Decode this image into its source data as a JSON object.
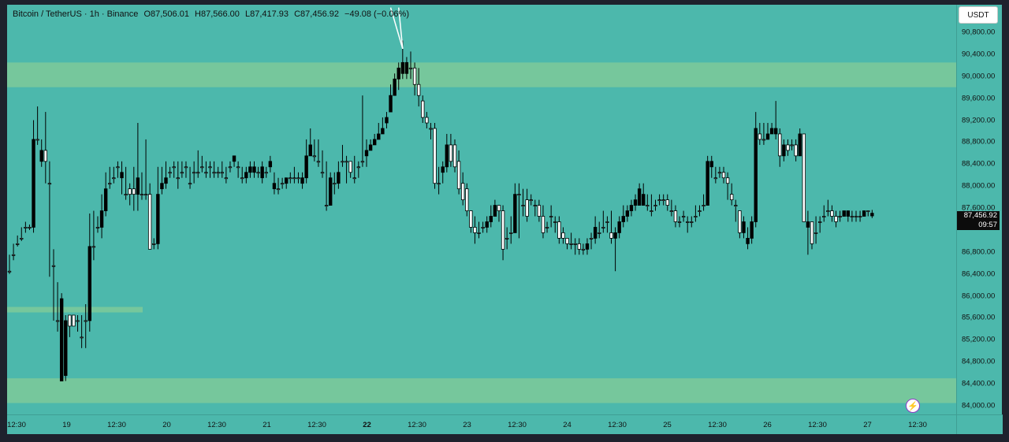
{
  "legend": {
    "symbol": "Bitcoin / TetherUS · 1h · Binance",
    "open": "O87,506.01",
    "high": "H87,566.00",
    "low": "L87,417.93",
    "close": "C87,456.92",
    "change": "−49.08 (−0.06%)"
  },
  "currency_button": "USDT",
  "last_price": {
    "price": "87,456.92",
    "countdown": "09:57"
  },
  "price_axis": [
    "90,800.00",
    "90,400.00",
    "90,000.00",
    "89,600.00",
    "89,200.00",
    "88,800.00",
    "88,400.00",
    "88,000.00",
    "87,600.00",
    "86,800.00",
    "86,400.00",
    "86,000.00",
    "85,600.00",
    "85,200.00",
    "84,800.00",
    "84,400.00",
    "84,000.00"
  ],
  "time_axis": [
    {
      "label": "12:30",
      "bold": false
    },
    {
      "label": "19",
      "bold": false
    },
    {
      "label": "12:30",
      "bold": false
    },
    {
      "label": "20",
      "bold": false
    },
    {
      "label": "12:30",
      "bold": false
    },
    {
      "label": "21",
      "bold": false
    },
    {
      "label": "12:30",
      "bold": false
    },
    {
      "label": "22",
      "bold": true
    },
    {
      "label": "12:30",
      "bold": false
    },
    {
      "label": "23",
      "bold": false
    },
    {
      "label": "12:30",
      "bold": false
    },
    {
      "label": "24",
      "bold": false
    },
    {
      "label": "12:30",
      "bold": false
    },
    {
      "label": "25",
      "bold": false
    },
    {
      "label": "12:30",
      "bold": false
    },
    {
      "label": "26",
      "bold": false
    },
    {
      "label": "12:30",
      "bold": false
    },
    {
      "label": "27",
      "bold": false
    },
    {
      "label": "12:30",
      "bold": false
    }
  ],
  "colors": {
    "background": "#4cb8ac",
    "zone": "#76c79c",
    "up": "#ffffff",
    "down": "#000000"
  },
  "chart_data": {
    "type": "candlestick",
    "price_range": [
      84000,
      90800
    ],
    "zones": [
      {
        "from": 89800,
        "to": 90250
      },
      {
        "from": 84050,
        "to": 84500
      },
      {
        "from": 85700,
        "to": 85800
      }
    ],
    "candles": [
      [
        86450,
        86750,
        86400,
        86450
      ],
      [
        86750,
        86950,
        86650,
        86750
      ],
      [
        86950,
        87100,
        86900,
        86950
      ],
      [
        87050,
        87250,
        87000,
        87050
      ],
      [
        87250,
        87350,
        87150,
        87250
      ],
      [
        87250,
        87300,
        87200,
        87250
      ],
      [
        88850,
        89200,
        87150,
        87250
      ],
      [
        88850,
        89450,
        88750,
        88850
      ],
      [
        88650,
        88850,
        88350,
        88450
      ],
      [
        88450,
        89350,
        88050,
        88650
      ],
      [
        88050,
        88450,
        86350,
        88050
      ],
      [
        86550,
        86850,
        85550,
        86550
      ],
      [
        85550,
        86250,
        85350,
        85550
      ],
      [
        85950,
        86050,
        84450,
        84450
      ],
      [
        85550,
        85650,
        84450,
        84550
      ],
      [
        85450,
        85650,
        85250,
        85650
      ],
      [
        85450,
        85650,
        85450,
        85650
      ],
      [
        85550,
        85650,
        85350,
        85550
      ],
      [
        85250,
        85650,
        85050,
        85250
      ],
      [
        85550,
        85850,
        85050,
        85550
      ],
      [
        86900,
        87500,
        85350,
        85550
      ],
      [
        86900,
        87550,
        86650,
        86900
      ],
      [
        87250,
        87450,
        87150,
        87250
      ],
      [
        87550,
        87850,
        87050,
        87250
      ],
      [
        87950,
        88250,
        87450,
        87550
      ],
      [
        88050,
        88350,
        87950,
        88050
      ],
      [
        88150,
        88350,
        88050,
        88150
      ],
      [
        88350,
        88450,
        88150,
        88350
      ],
      [
        88250,
        88450,
        87850,
        88150
      ],
      [
        87850,
        88350,
        87750,
        87850
      ],
      [
        87850,
        88050,
        87650,
        87950
      ],
      [
        87850,
        88350,
        87550,
        87950
      ],
      [
        88150,
        89150,
        87550,
        87850
      ],
      [
        87850,
        88250,
        87750,
        87850
      ],
      [
        87850,
        88850,
        87750,
        87850
      ],
      [
        86850,
        88050,
        86850,
        87850
      ],
      [
        86950,
        87050,
        86850,
        86950
      ],
      [
        87850,
        88350,
        86850,
        86950
      ],
      [
        88050,
        88350,
        87850,
        87950
      ],
      [
        88150,
        88450,
        87950,
        88050
      ],
      [
        88250,
        88350,
        88150,
        88250
      ],
      [
        88350,
        88450,
        88150,
        88350
      ],
      [
        88150,
        88450,
        87950,
        88150
      ],
      [
        88250,
        88450,
        88150,
        88250
      ],
      [
        88350,
        88450,
        88150,
        88350
      ],
      [
        88050,
        88350,
        87950,
        88050
      ],
      [
        88250,
        88450,
        88050,
        88250
      ],
      [
        88250,
        88650,
        88150,
        88250
      ],
      [
        88350,
        88550,
        88250,
        88350
      ],
      [
        88250,
        88450,
        88150,
        88250
      ],
      [
        88350,
        88450,
        88150,
        88350
      ],
      [
        88250,
        88450,
        88150,
        88250
      ],
      [
        88250,
        88350,
        88150,
        88250
      ],
      [
        88250,
        88450,
        88150,
        88250
      ],
      [
        88150,
        88350,
        88050,
        88150
      ],
      [
        88350,
        88450,
        88250,
        88350
      ],
      [
        88550,
        88550,
        88350,
        88450
      ],
      [
        88350,
        88450,
        88150,
        88350
      ],
      [
        88150,
        88350,
        88050,
        88150
      ],
      [
        88250,
        88350,
        88050,
        88150
      ],
      [
        88350,
        88450,
        88150,
        88250
      ],
      [
        88350,
        88450,
        88150,
        88250
      ],
      [
        88250,
        88350,
        88150,
        88250
      ],
      [
        88350,
        88450,
        88050,
        88150
      ],
      [
        88250,
        88350,
        88150,
        88250
      ],
      [
        88450,
        88550,
        88250,
        88350
      ],
      [
        88050,
        88250,
        87850,
        87950
      ],
      [
        87950,
        88150,
        87850,
        87950
      ],
      [
        88050,
        88150,
        87950,
        88050
      ],
      [
        88150,
        88150,
        87950,
        88050
      ],
      [
        88150,
        88250,
        88050,
        88150
      ],
      [
        88150,
        88350,
        88050,
        88150
      ],
      [
        88150,
        88250,
        88050,
        88150
      ],
      [
        88150,
        88250,
        87950,
        88050
      ],
      [
        88550,
        88850,
        88050,
        88150
      ],
      [
        88750,
        89050,
        88550,
        88550
      ],
      [
        88550,
        88850,
        88450,
        88550
      ],
      [
        88450,
        88850,
        88350,
        88450
      ],
      [
        88250,
        88650,
        88150,
        88250
      ],
      [
        87650,
        88450,
        87550,
        87650
      ],
      [
        88150,
        88250,
        87650,
        87650
      ],
      [
        88050,
        88250,
        87850,
        88050
      ],
      [
        88250,
        88450,
        87950,
        88050
      ],
      [
        88450,
        88750,
        88350,
        88450
      ],
      [
        88450,
        88550,
        88050,
        88450
      ],
      [
        88250,
        88450,
        88150,
        88450
      ],
      [
        88150,
        88550,
        88050,
        88150
      ],
      [
        88350,
        88450,
        88150,
        88350
      ],
      [
        88450,
        89650,
        88350,
        88450
      ],
      [
        88650,
        88850,
        88350,
        88550
      ],
      [
        88750,
        88850,
        88650,
        88650
      ],
      [
        88850,
        88950,
        88750,
        88750
      ],
      [
        88950,
        89150,
        88850,
        88850
      ],
      [
        89050,
        89250,
        88950,
        88950
      ],
      [
        89250,
        89350,
        89050,
        89150
      ],
      [
        89650,
        89850,
        89350,
        89350
      ],
      [
        89950,
        90050,
        89650,
        89650
      ],
      [
        90150,
        90250,
        89750,
        89950
      ],
      [
        90250,
        90650,
        89950,
        90050
      ],
      [
        90250,
        90350,
        89950,
        90050
      ],
      [
        90150,
        90450,
        89950,
        90150
      ],
      [
        89850,
        90250,
        89650,
        90150
      ],
      [
        89650,
        90150,
        89450,
        89850
      ],
      [
        89250,
        89650,
        89150,
        89550
      ],
      [
        89150,
        89350,
        89050,
        89250
      ],
      [
        89050,
        89150,
        88850,
        89050
      ],
      [
        88050,
        89150,
        87950,
        89050
      ],
      [
        88050,
        88350,
        87850,
        88050
      ],
      [
        88350,
        88450,
        88050,
        88250
      ],
      [
        88750,
        88950,
        88250,
        88350
      ],
      [
        88450,
        88950,
        88350,
        88750
      ],
      [
        88350,
        88850,
        88250,
        88750
      ],
      [
        87950,
        88650,
        87850,
        88450
      ],
      [
        87750,
        88250,
        87650,
        88050
      ],
      [
        87550,
        88050,
        87450,
        87950
      ],
      [
        87250,
        87550,
        87150,
        87550
      ],
      [
        87150,
        87450,
        86950,
        87250
      ],
      [
        87150,
        87350,
        87050,
        87150
      ],
      [
        87250,
        87350,
        87150,
        87250
      ],
      [
        87350,
        87450,
        87150,
        87250
      ],
      [
        87450,
        87650,
        87250,
        87350
      ],
      [
        87650,
        87750,
        87450,
        87450
      ],
      [
        87550,
        87650,
        87350,
        87650
      ],
      [
        86850,
        87650,
        86650,
        87550
      ],
      [
        87050,
        87250,
        86850,
        87050
      ],
      [
        87150,
        87450,
        86950,
        87150
      ],
      [
        87850,
        88050,
        87150,
        87150
      ],
      [
        87850,
        88050,
        87050,
        87850
      ],
      [
        87650,
        87950,
        87450,
        87650
      ],
      [
        87450,
        87950,
        87350,
        87750
      ],
      [
        87750,
        87850,
        87650,
        87750
      ],
      [
        87650,
        87750,
        87450,
        87650
      ],
      [
        87450,
        87750,
        87350,
        87650
      ],
      [
        87150,
        87650,
        87050,
        87450
      ],
      [
        87250,
        87350,
        87150,
        87250
      ],
      [
        87450,
        87650,
        87250,
        87450
      ],
      [
        87350,
        87450,
        87150,
        87350
      ],
      [
        87050,
        87450,
        86950,
        87350
      ],
      [
        87050,
        87250,
        86950,
        87150
      ],
      [
        86950,
        87050,
        86850,
        87050
      ],
      [
        86950,
        87150,
        86850,
        86950
      ],
      [
        86950,
        87050,
        86750,
        86950
      ],
      [
        86850,
        87050,
        86750,
        86950
      ],
      [
        86850,
        86950,
        86750,
        86850
      ],
      [
        86950,
        87050,
        86750,
        86850
      ],
      [
        87050,
        87150,
        86850,
        87050
      ],
      [
        87250,
        87450,
        86950,
        87050
      ],
      [
        87150,
        87350,
        87050,
        87150
      ],
      [
        87250,
        87550,
        87150,
        87250
      ],
      [
        87350,
        87450,
        87150,
        87350
      ],
      [
        87050,
        87550,
        86950,
        87150
      ],
      [
        87150,
        87250,
        86450,
        87050
      ],
      [
        87350,
        87450,
        87050,
        87150
      ],
      [
        87450,
        87650,
        87250,
        87350
      ],
      [
        87550,
        87650,
        87350,
        87450
      ],
      [
        87650,
        87750,
        87450,
        87550
      ],
      [
        87750,
        87850,
        87550,
        87650
      ],
      [
        87950,
        88050,
        87650,
        87650
      ],
      [
        87850,
        88050,
        87650,
        87650
      ],
      [
        87650,
        87850,
        87550,
        87650
      ],
      [
        87550,
        87850,
        87450,
        87550
      ],
      [
        87650,
        87750,
        87550,
        87650
      ],
      [
        87750,
        87850,
        87650,
        87750
      ],
      [
        87750,
        87850,
        87650,
        87750
      ],
      [
        87650,
        87850,
        87550,
        87750
      ],
      [
        87550,
        87750,
        87450,
        87550
      ],
      [
        87350,
        87650,
        87250,
        87550
      ],
      [
        87350,
        87450,
        87250,
        87350
      ],
      [
        87450,
        87550,
        87350,
        87450
      ],
      [
        87350,
        87450,
        87150,
        87350
      ],
      [
        87350,
        87450,
        87250,
        87350
      ],
      [
        87450,
        87650,
        87350,
        87450
      ],
      [
        87550,
        87650,
        87450,
        87550
      ],
      [
        87650,
        87850,
        87550,
        87650
      ],
      [
        88450,
        88550,
        87650,
        87650
      ],
      [
        88450,
        88550,
        88150,
        88350
      ],
      [
        88150,
        88350,
        88050,
        88150
      ],
      [
        88250,
        88350,
        88150,
        88250
      ],
      [
        88150,
        88350,
        88050,
        88250
      ],
      [
        88050,
        88250,
        87750,
        88150
      ],
      [
        87750,
        88050,
        87650,
        87850
      ],
      [
        87650,
        87750,
        87350,
        87650
      ],
      [
        87150,
        87550,
        87050,
        87550
      ],
      [
        87350,
        87450,
        87050,
        87150
      ],
      [
        87050,
        87250,
        86850,
        86950
      ],
      [
        87350,
        87450,
        86950,
        87050
      ],
      [
        89050,
        89350,
        87250,
        87350
      ],
      [
        88850,
        89150,
        88750,
        88950
      ],
      [
        88850,
        89150,
        88750,
        88850
      ],
      [
        88950,
        89150,
        88850,
        88850
      ],
      [
        89050,
        89150,
        88950,
        88950
      ],
      [
        89050,
        89550,
        88850,
        88950
      ],
      [
        88550,
        89050,
        88350,
        88950
      ],
      [
        88750,
        88850,
        88450,
        88550
      ],
      [
        88650,
        88850,
        88550,
        88750
      ],
      [
        88750,
        88850,
        88650,
        88750
      ],
      [
        88550,
        88850,
        88450,
        88750
      ],
      [
        88950,
        89050,
        88550,
        88550
      ],
      [
        87350,
        88950,
        87350,
        88950
      ],
      [
        87350,
        87550,
        86750,
        87250
      ],
      [
        86950,
        87350,
        86850,
        87350
      ],
      [
        87150,
        87450,
        86950,
        87150
      ],
      [
        87350,
        87450,
        87150,
        87350
      ],
      [
        87450,
        87650,
        87350,
        87450
      ],
      [
        87550,
        87750,
        87450,
        87550
      ],
      [
        87450,
        87650,
        87350,
        87550
      ],
      [
        87350,
        87550,
        87250,
        87450
      ],
      [
        87450,
        87550,
        87350,
        87450
      ],
      [
        87550,
        87550,
        87450,
        87450
      ],
      [
        87550,
        87550,
        87350,
        87450
      ],
      [
        87450,
        87550,
        87350,
        87450
      ],
      [
        87450,
        87550,
        87350,
        87450
      ],
      [
        87450,
        87550,
        87350,
        87450
      ],
      [
        87550,
        87550,
        87450,
        87450
      ],
      [
        87550,
        87550,
        87450,
        87550
      ],
      [
        87506,
        87566,
        87418,
        87457
      ]
    ],
    "drawings": [
      {
        "type": "trend_line",
        "from": {
          "time_index": 98,
          "price": 90500
        },
        "to": {
          "time_index": 97,
          "price": 91250
        }
      },
      {
        "type": "trend_line",
        "from": {
          "time_index": 98,
          "price": 90500
        },
        "to": {
          "time_index": 95,
          "price": 91250
        }
      }
    ]
  }
}
